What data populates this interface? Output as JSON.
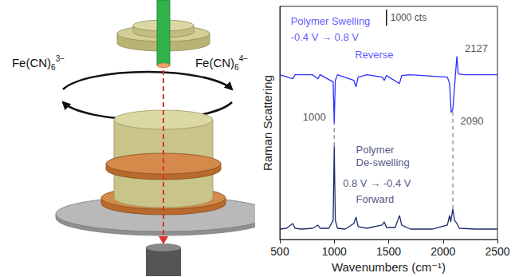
{
  "diagram": {
    "species": [
      {
        "base": "Fe(CN)",
        "sub": "6",
        "sup": "3−"
      },
      {
        "base": "Fe(CN)",
        "sub": "6",
        "sup": "4−"
      }
    ]
  },
  "chart_data": {
    "type": "line",
    "x_label": "Wavenumbers (cm⁻¹)",
    "y_label": "Raman Scattering",
    "xlim": [
      500,
      2500
    ],
    "xticks": [
      500,
      1000,
      1500,
      2000,
      2500
    ],
    "ylim": [
      0,
      14500
    ],
    "tick_labels": "x",
    "grid": false,
    "series": [
      {
        "name": "Reverse",
        "color": "#2f2fff",
        "x": [
          500,
          620,
          640,
          800,
          850,
          870,
          990,
          1000,
          1010,
          1030,
          1180,
          1200,
          1220,
          1300,
          1440,
          1460,
          1480,
          1600,
          1620,
          1700,
          2040,
          2060,
          2075,
          2090,
          2110,
          2127,
          2140,
          2200,
          2500
        ],
        "values": [
          10250,
          10000,
          10250,
          10250,
          10000,
          10250,
          9800,
          7200,
          9900,
          10250,
          9900,
          9500,
          10100,
          10250,
          10100,
          9900,
          10200,
          9700,
          10200,
          10250,
          10100,
          9700,
          7900,
          8100,
          9900,
          11400,
          10300,
          10250,
          10250
        ]
      },
      {
        "name": "Forward",
        "color": "#1b2a68",
        "x": [
          500,
          560,
          600,
          620,
          640,
          700,
          800,
          850,
          870,
          950,
          990,
          1000,
          1010,
          1030,
          1100,
          1180,
          1200,
          1220,
          1300,
          1440,
          1460,
          1480,
          1560,
          1600,
          1620,
          1700,
          1900,
          2040,
          2060,
          2070,
          2090,
          2105,
          2127,
          2150,
          2300,
          2500
        ],
        "values": [
          650,
          700,
          900,
          1000,
          700,
          650,
          700,
          900,
          700,
          700,
          1200,
          5800,
          1200,
          700,
          650,
          1000,
          1400,
          800,
          700,
          900,
          1100,
          750,
          750,
          1500,
          900,
          650,
          650,
          900,
          1500,
          1100,
          1900,
          1200,
          1000,
          700,
          650,
          650
        ]
      }
    ],
    "guides": [
      {
        "x": 1000,
        "y": [
          5800,
          7200
        ]
      },
      {
        "x": 2090,
        "y": [
          1900,
          8100
        ]
      }
    ],
    "scale_bar": {
      "x": 1480,
      "y": 13300,
      "value": 1000,
      "label": "1000 cts"
    },
    "annotations": [
      {
        "text": "Polymer Swelling",
        "x": 600,
        "y": 13600,
        "color": "#2f2fff"
      },
      {
        "text": "-0.4 V → 0.8 V",
        "x": 600,
        "y": 12600,
        "color": "#2f2fff"
      },
      {
        "text": "Reverse",
        "x": 1190,
        "y": 11500,
        "color": "#2f2fff"
      },
      {
        "text": "2127",
        "x": 2200,
        "y": 11900,
        "color": "#222222"
      },
      {
        "text": "1000",
        "x": 711,
        "y": 7600,
        "color": "#222222"
      },
      {
        "text": "2090",
        "x": 2160,
        "y": 7400,
        "color": "#222222"
      },
      {
        "text": "Polymer",
        "x": 1200,
        "y": 5600,
        "color": "#1b2a68"
      },
      {
        "text": "De-swelling",
        "x": 1200,
        "y": 4800,
        "color": "#1b2a68"
      },
      {
        "text": "0.8 V → -0.4 V",
        "x": 1080,
        "y": 3500,
        "color": "#1b2a68"
      },
      {
        "text": "Forward",
        "x": 1200,
        "y": 2500,
        "color": "#1b2a68"
      }
    ]
  }
}
